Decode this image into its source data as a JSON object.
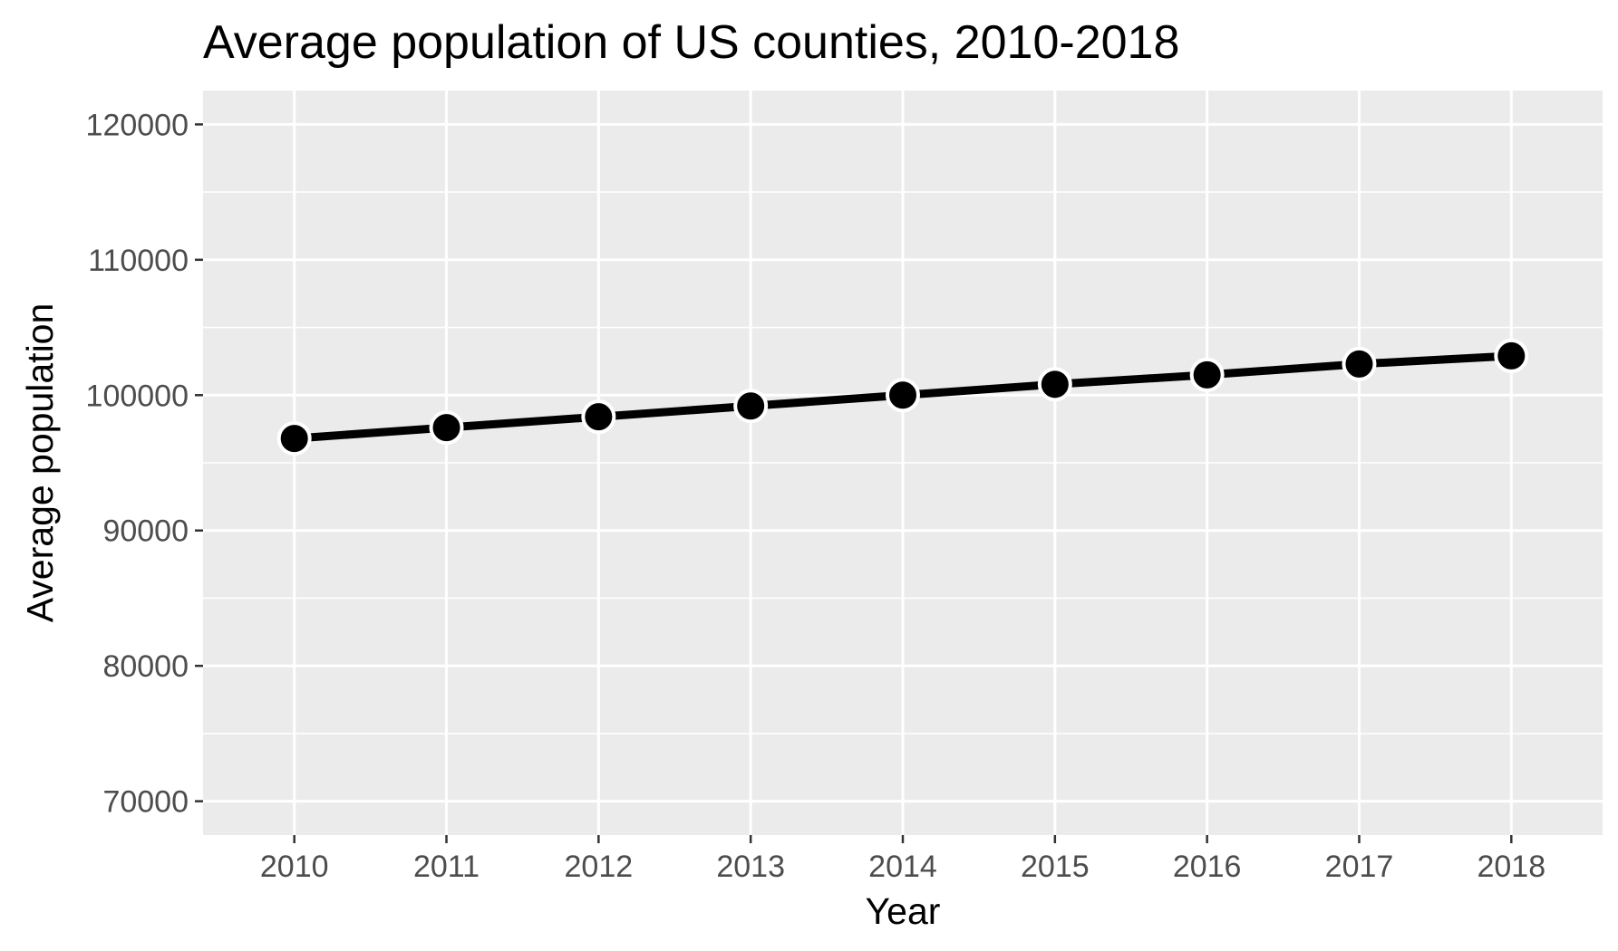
{
  "chart_data": {
    "type": "line",
    "title": "Average population of US counties, 2010-2018",
    "xlabel": "Year",
    "ylabel": "Average population",
    "x": [
      2010,
      2011,
      2012,
      2013,
      2014,
      2015,
      2016,
      2017,
      2018
    ],
    "y": [
      96800,
      97600,
      98400,
      99200,
      100000,
      100800,
      101500,
      102300,
      102900
    ],
    "xlim": [
      2009.4,
      2018.6
    ],
    "ylim": [
      67500,
      122500
    ],
    "yticks": [
      70000,
      80000,
      90000,
      100000,
      110000,
      120000
    ],
    "yticks_minor": [
      75000,
      85000,
      95000,
      105000,
      115000
    ],
    "xticks": [
      2010,
      2011,
      2012,
      2013,
      2014,
      2015,
      2016,
      2017,
      2018
    ],
    "xtick_labels": [
      "2010",
      "2011",
      "2012",
      "2013",
      "2014",
      "2015",
      "2016",
      "2017",
      "2018"
    ],
    "ytick_labels": [
      "70000",
      "80000",
      "90000",
      "100000",
      "110000",
      "120000"
    ],
    "grid": true,
    "legend": "none",
    "colors": {
      "panel_background": "#ebebeb",
      "grid_line": "#ffffff",
      "series_line": "#000000",
      "point_fill": "#000000",
      "point_stroke": "#ffffff",
      "tick_label": "#4d4d4d",
      "axis_tick": "#333333"
    }
  }
}
